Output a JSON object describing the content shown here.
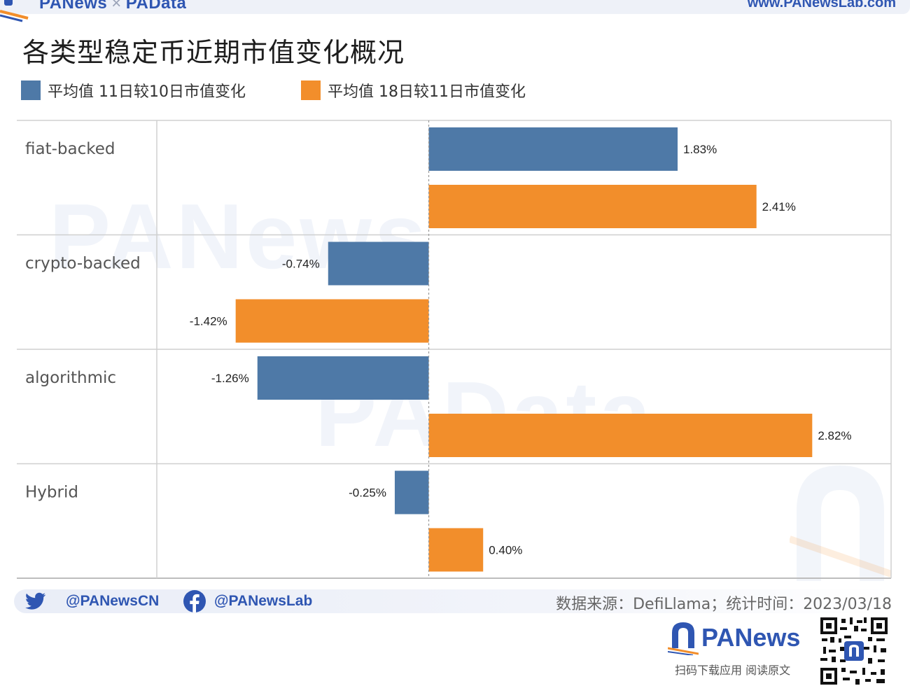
{
  "header": {
    "brand_left": "PANews",
    "brand_cross": "×",
    "brand_right": "PAData",
    "url": "www.PANewsLab.com"
  },
  "title": "各类型稳定币近期市值变化概况",
  "chart_data": {
    "type": "bar",
    "orientation": "horizontal",
    "categories": [
      "fiat-backed",
      "crypto-backed",
      "algorithmic",
      "Hybrid"
    ],
    "series": [
      {
        "name": "平均值 11日较10日市值变化",
        "color": "#4e79a7",
        "values": [
          1.83,
          -0.74,
          -1.26,
          -0.25
        ],
        "labels": [
          "1.83%",
          "-0.74%",
          "-1.26%",
          "-0.25%"
        ]
      },
      {
        "name": "平均值 18日较11日市值变化",
        "color": "#f28e2b",
        "values": [
          2.41,
          -1.42,
          2.82,
          0.4
        ],
        "labels": [
          "2.41%",
          "-1.42%",
          "2.82%",
          "0.40%"
        ]
      }
    ],
    "xlim": [
      -2.0,
      3.4
    ],
    "unit": "%",
    "legend_position": "top-left",
    "grid": false
  },
  "watermarks": {
    "top": "PANews",
    "bottom": "PAData"
  },
  "footer": {
    "twitter": "@PANewsCN",
    "facebook": "@PANewsLab",
    "source": "数据来源：DefiLlama；统计时间：2023/03/18",
    "brand": "PANews",
    "brand_sub": "扫码下载应用  阅读原文"
  },
  "icons": {
    "twitter": "twitter-bird-icon",
    "facebook": "facebook-icon",
    "logo": "panews-arch-logo-icon",
    "qr": "qr-code"
  }
}
